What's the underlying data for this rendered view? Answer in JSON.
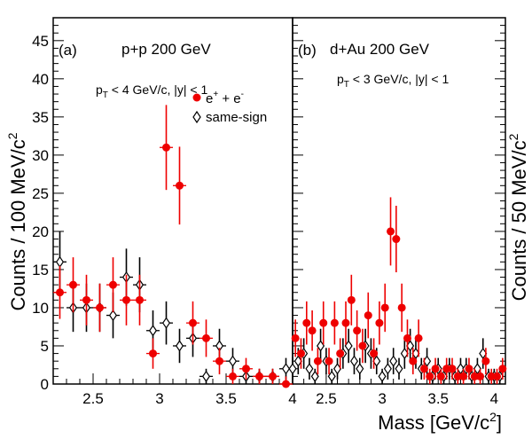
{
  "chart_data": [
    {
      "panel": "(a)",
      "type": "scatter",
      "title": "p+p 200 GeV",
      "cut": {
        "base": "p",
        "sub": "T",
        "rest": " < 4 GeV/c, |y| < 1"
      },
      "ylabel": {
        "text": "Counts / 100 MeV/c",
        "sup": "2"
      },
      "xlim": [
        2.2,
        4.0
      ],
      "ylim": [
        0,
        48
      ],
      "xticks": [
        2.5,
        3,
        3.5,
        4
      ],
      "xtick_labels": [
        "2.5",
        "3",
        "3.5",
        "4"
      ],
      "yticks": [
        0,
        5,
        10,
        15,
        20,
        25,
        30,
        35,
        40,
        45
      ],
      "ytick_labels": [
        "0",
        "5",
        "10",
        "15",
        "20",
        "25",
        "30",
        "35",
        "40",
        "45"
      ],
      "legend": {
        "position": "upper-right",
        "entries": [
          {
            "series": "opposite",
            "base": "e",
            "sup1": "+",
            "mid": " + e",
            "sup2": "-"
          },
          {
            "series": "same",
            "text": "same-sign"
          }
        ]
      },
      "series": [
        {
          "key": "opposite",
          "marker": "filled-circle",
          "color": "#ee0000",
          "x": [
            2.25,
            2.35,
            2.45,
            2.55,
            2.65,
            2.75,
            2.85,
            2.95,
            3.05,
            3.15,
            3.25,
            3.35,
            3.45,
            3.55,
            3.65,
            3.75,
            3.85,
            3.95
          ],
          "y": [
            12,
            13,
            11,
            10,
            13,
            11,
            11,
            4,
            31,
            26,
            8,
            6,
            3,
            1,
            2,
            1,
            1,
            0
          ]
        },
        {
          "key": "same",
          "marker": "open-diamond",
          "color": "#000000",
          "x": [
            2.25,
            2.35,
            2.45,
            2.55,
            2.65,
            2.75,
            2.85,
            2.95,
            3.05,
            3.15,
            3.25,
            3.35,
            3.45,
            3.55,
            3.65,
            3.75,
            3.85,
            3.95
          ],
          "y": [
            16,
            10,
            10,
            10,
            9,
            14,
            13,
            7,
            8,
            5,
            6,
            1,
            5,
            3,
            1,
            1,
            1,
            2
          ]
        }
      ]
    },
    {
      "panel": "(b)",
      "type": "scatter",
      "title": "d+Au 200 GeV",
      "cut": {
        "base": "p",
        "sub": "T",
        "rest": " < 3 GeV/c, |y| < 1"
      },
      "ylabel": {
        "text": "Counts / 50 MeV/c",
        "sup": "2"
      },
      "xlabel": {
        "text": "Mass [GeV/c",
        "sup": "2",
        "tail": "]"
      },
      "xlim": [
        2.2,
        4.1
      ],
      "ylim": [
        0,
        48
      ],
      "xticks": [
        2.5,
        3,
        3.5,
        4
      ],
      "xtick_labels": [
        "2.5",
        "3",
        "3.5",
        "4"
      ],
      "series": [
        {
          "key": "opposite",
          "marker": "filled-circle",
          "color": "#ee0000",
          "x": [
            2.225,
            2.275,
            2.325,
            2.375,
            2.425,
            2.475,
            2.525,
            2.575,
            2.625,
            2.675,
            2.725,
            2.775,
            2.825,
            2.875,
            2.925,
            2.975,
            3.025,
            3.075,
            3.125,
            3.175,
            3.225,
            3.275,
            3.325,
            3.375,
            3.425,
            3.475,
            3.525,
            3.575,
            3.625,
            3.675,
            3.725,
            3.775,
            3.825,
            3.875,
            3.925,
            3.975,
            4.025,
            4.075
          ],
          "y": [
            6,
            4,
            8,
            7,
            3,
            8,
            3,
            8,
            4,
            8,
            11,
            7,
            5,
            9,
            4,
            8,
            10,
            20,
            19,
            10,
            6,
            3,
            6,
            2,
            1,
            2,
            1,
            2,
            2,
            1,
            1,
            2,
            1,
            1,
            3,
            1,
            1,
            2
          ]
        },
        {
          "key": "same",
          "marker": "open-diamond",
          "color": "#000000",
          "x": [
            2.2,
            2.25,
            2.3,
            2.35,
            2.4,
            2.45,
            2.5,
            2.55,
            2.6,
            2.65,
            2.7,
            2.75,
            2.8,
            2.85,
            2.9,
            2.95,
            3.0,
            3.05,
            3.1,
            3.15,
            3.2,
            3.25,
            3.3,
            3.35,
            3.4,
            3.45,
            3.5,
            3.55,
            3.6,
            3.65,
            3.7,
            3.75,
            3.8,
            3.85,
            3.9,
            3.95,
            4.0,
            4.05
          ],
          "y": [
            2,
            3,
            4,
            2,
            1,
            5,
            3,
            1,
            2,
            4,
            5,
            3,
            2,
            5,
            4,
            3,
            1,
            2,
            3,
            2,
            4,
            5,
            4,
            2,
            3,
            1,
            2,
            1,
            2,
            1,
            2,
            2,
            1,
            2,
            4,
            1,
            1,
            1
          ]
        }
      ]
    }
  ]
}
